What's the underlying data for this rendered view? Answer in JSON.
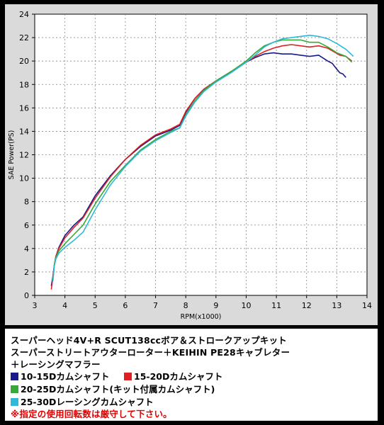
{
  "chart_data": {
    "type": "line",
    "xlabel": "RPM(x1000)",
    "ylabel": "SAE Power(PS)",
    "xlim": [
      3,
      14
    ],
    "ylim": [
      0,
      24
    ],
    "xticks": [
      3,
      4,
      5,
      6,
      7,
      8,
      9,
      10,
      11,
      12,
      13,
      14
    ],
    "yticks": [
      0,
      2,
      4,
      6,
      8,
      10,
      12,
      14,
      16,
      18,
      20,
      22,
      24
    ],
    "grid": true,
    "series": [
      {
        "name": "10-15Dカムシャフト",
        "color": "#1a1a8c",
        "x": [
          3.55,
          3.6,
          3.65,
          3.7,
          3.8,
          4,
          4.3,
          4.6,
          5,
          5.5,
          6,
          6.5,
          7,
          7.5,
          7.8,
          8,
          8.3,
          8.6,
          9,
          9.5,
          10,
          10.3,
          10.6,
          10.9,
          11.2,
          11.5,
          11.8,
          12.1,
          12.4,
          12.7,
          12.85,
          13,
          13.1,
          13.2,
          13.3
        ],
        "y": [
          0.8,
          1.6,
          2.6,
          3.3,
          4.1,
          5.1,
          6.0,
          6.7,
          8.5,
          10.2,
          11.6,
          12.7,
          13.6,
          14.1,
          14.5,
          15.6,
          16.8,
          17.6,
          18.3,
          19.1,
          19.9,
          20.3,
          20.6,
          20.7,
          20.6,
          20.6,
          20.5,
          20.4,
          20.5,
          20.0,
          19.8,
          19.3,
          19.0,
          18.9,
          18.6
        ]
      },
      {
        "name": "15-20Dカムシャフト",
        "color": "#e02020",
        "x": [
          3.55,
          3.6,
          3.65,
          3.7,
          3.8,
          4,
          4.3,
          4.6,
          5,
          5.5,
          6,
          6.5,
          7,
          7.5,
          7.8,
          8,
          8.3,
          8.6,
          9,
          9.5,
          10,
          10.3,
          10.6,
          10.9,
          11.2,
          11.5,
          11.8,
          12.1,
          12.4,
          12.7,
          12.9,
          13.1,
          13.3,
          13.5
        ],
        "y": [
          0.5,
          1.5,
          2.6,
          3.3,
          4.0,
          4.9,
          5.8,
          6.6,
          8.3,
          10.1,
          11.6,
          12.8,
          13.7,
          14.2,
          14.6,
          15.7,
          16.8,
          17.6,
          18.3,
          19.1,
          19.9,
          20.4,
          20.8,
          21.1,
          21.3,
          21.4,
          21.3,
          21.2,
          21.3,
          21.1,
          20.8,
          20.5,
          20.4,
          20.0
        ]
      },
      {
        "name": "20-25Dカムシャフト(キット付属カムシャフト)",
        "color": "#38a838",
        "x": [
          3.6,
          3.65,
          3.7,
          3.8,
          4,
          4.3,
          4.6,
          5,
          5.5,
          6,
          6.5,
          7,
          7.5,
          7.8,
          8,
          8.3,
          8.6,
          9,
          9.5,
          10,
          10.3,
          10.6,
          10.9,
          11.2,
          11.5,
          11.8,
          12.1,
          12.4,
          12.7,
          13,
          13.3,
          13.5
        ],
        "y": [
          1.2,
          2.6,
          3.2,
          3.8,
          4.4,
          5.2,
          6.0,
          7.8,
          9.7,
          11.1,
          12.4,
          13.3,
          14.0,
          14.3,
          15.4,
          16.6,
          17.5,
          18.3,
          19.1,
          20.0,
          20.7,
          21.3,
          21.6,
          21.8,
          21.8,
          21.8,
          21.6,
          21.6,
          21.2,
          20.7,
          20.4,
          19.9
        ]
      },
      {
        "name": "25-30Dレーシングカムシャフト",
        "color": "#30b8d8",
        "x": [
          3.6,
          3.65,
          3.7,
          3.8,
          4,
          4.3,
          4.6,
          5,
          5.5,
          6,
          6.5,
          7,
          7.5,
          7.8,
          8,
          8.3,
          8.6,
          9,
          9.5,
          10,
          10.3,
          10.6,
          10.9,
          11.2,
          11.5,
          11.8,
          12.1,
          12.4,
          12.7,
          13,
          13.3,
          13.55
        ],
        "y": [
          1.2,
          2.5,
          3.1,
          3.6,
          4.1,
          4.7,
          5.4,
          7.3,
          9.4,
          11.0,
          12.3,
          13.2,
          13.9,
          14.3,
          15.3,
          16.5,
          17.4,
          18.2,
          19.0,
          19.9,
          20.5,
          21.2,
          21.6,
          21.9,
          22.0,
          22.1,
          22.2,
          22.1,
          21.9,
          21.5,
          21.0,
          20.4
        ]
      }
    ]
  },
  "panel": {
    "line1": "スーパーヘッド4V+R SCUT138ccボア＆ストロークアップキット",
    "line2": "スーパーストリートアウターローター＋KEIHIN PE28キャブレター",
    "line3": "＋レーシングマフラー",
    "legend": [
      {
        "label": "10-15Dカムシャフト",
        "color": "#1a1a8c"
      },
      {
        "label": "15-20Dカムシャフト",
        "color": "#e02020"
      },
      {
        "label": "20-25Dカムシャフト(キット付属カムシャフト)",
        "color": "#38a838"
      },
      {
        "label": "25-30Dレーシングカムシャフト",
        "color": "#30b8d8"
      }
    ],
    "note": "※指定の使用回転数は厳守して下さい。"
  }
}
